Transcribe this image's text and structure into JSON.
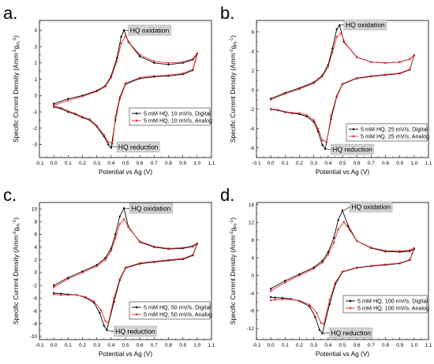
{
  "figure": {
    "colors": {
      "digital": "#000000",
      "analog": "#e8262b"
    }
  },
  "chart_data": [
    {
      "type": "line",
      "panel_label": "a.",
      "xlabel": "Potential vs Ag (V)",
      "ylabel": "Specific Current Density (Amm",
      "ylabel_sup": "-2",
      "ylabel_mid": "g",
      "ylabel_sub": "Pt",
      "ylabel_sup2": "-1",
      "ylabel_end": ")",
      "xlim": [
        -0.1,
        1.1
      ],
      "ylim": [
        -3.8,
        4.6
      ],
      "xticks": [
        -0.1,
        0.0,
        0.1,
        0.2,
        0.3,
        0.4,
        0.5,
        0.6,
        0.7,
        0.8,
        0.9,
        1.0,
        1.1
      ],
      "yticks": [
        -3,
        -2,
        -1,
        0,
        1,
        2,
        3,
        4
      ],
      "legend": [
        "5 mM HQ, 10 mV/s, Digital",
        "5 mM HQ, 10 mV/s, Analog"
      ],
      "legend_position": "center-right",
      "annotations": [
        {
          "text": "HQ oxidation",
          "x": 0.48,
          "y": 4.0,
          "box_x": 0.52,
          "box_y": 4.0
        },
        {
          "text": "HQ reduction",
          "x": 0.4,
          "y": -3.1,
          "box_x": 0.44,
          "box_y": -3.15
        }
      ],
      "series": [
        {
          "name": "5 mM HQ, 10 mV/s, Digital",
          "x": [
            0.0,
            0.1,
            0.2,
            0.3,
            0.36,
            0.4,
            0.44,
            0.47,
            0.49,
            0.52,
            0.6,
            0.7,
            0.8,
            0.9,
            0.97,
            1.0,
            0.97,
            0.9,
            0.8,
            0.7,
            0.6,
            0.5,
            0.46,
            0.43,
            0.4,
            0.38,
            0.35,
            0.3,
            0.25,
            0.2,
            0.15,
            0.1,
            0.05,
            0.0
          ],
          "y": [
            -0.5,
            -0.2,
            0.0,
            0.3,
            0.6,
            1.2,
            2.3,
            3.6,
            4.0,
            3.3,
            2.4,
            2.0,
            1.9,
            2.0,
            2.2,
            2.55,
            1.55,
            1.3,
            1.2,
            1.15,
            1.05,
            0.7,
            -0.2,
            -1.5,
            -3.2,
            -3.0,
            -2.5,
            -1.9,
            -1.5,
            -1.35,
            -1.15,
            -1.0,
            -0.8,
            -0.7
          ]
        },
        {
          "name": "5 mM HQ, 10 mV/s, Analog",
          "x": [
            0.0,
            0.1,
            0.2,
            0.3,
            0.36,
            0.4,
            0.44,
            0.47,
            0.5,
            0.53,
            0.6,
            0.7,
            0.8,
            0.9,
            0.97,
            1.0,
            0.97,
            0.9,
            0.8,
            0.7,
            0.6,
            0.5,
            0.46,
            0.43,
            0.41,
            0.38,
            0.35,
            0.3,
            0.25,
            0.2,
            0.15,
            0.1,
            0.05,
            0.0
          ],
          "y": [
            -0.6,
            -0.3,
            -0.05,
            0.25,
            0.55,
            1.1,
            2.1,
            3.2,
            3.65,
            3.2,
            2.5,
            2.1,
            2.0,
            2.05,
            2.25,
            2.6,
            1.6,
            1.35,
            1.25,
            1.2,
            1.1,
            0.75,
            -0.1,
            -1.3,
            -2.95,
            -2.85,
            -2.4,
            -1.85,
            -1.45,
            -1.3,
            -1.1,
            -0.95,
            -0.75,
            -0.65
          ]
        }
      ]
    },
    {
      "type": "line",
      "panel_label": "b.",
      "xlabel": "Potential vs Ag (V)",
      "ylabel": "Specific Current Density (Amm",
      "ylabel_sup": "-2",
      "ylabel_mid": "g",
      "ylabel_sub": "Pt",
      "ylabel_sup2": "-1",
      "ylabel_end": ")",
      "xlim": [
        -0.1,
        1.1
      ],
      "ylim": [
        -7,
        7.2
      ],
      "xticks": [
        -0.1,
        0.0,
        0.1,
        0.2,
        0.3,
        0.4,
        0.5,
        0.6,
        0.7,
        0.8,
        0.9,
        1.0,
        1.1
      ],
      "yticks": [
        -6,
        -4,
        -2,
        0,
        2,
        4,
        6
      ],
      "legend": [
        "5 mM HQ, 25 mV/s, Digital",
        "5 mM HQ, 25 mV/s, Analog"
      ],
      "legend_position": "lower-right",
      "annotations": [
        {
          "text": "HQ oxidation",
          "x": 0.47,
          "y": 6.7,
          "box_x": 0.51,
          "box_y": 6.75
        },
        {
          "text": "HQ reduction",
          "x": 0.38,
          "y": -6.1,
          "box_x": 0.42,
          "box_y": -6.15
        }
      ],
      "series": [
        {
          "name": "5 mM HQ, 25 mV/s, Digital",
          "x": [
            0.0,
            0.1,
            0.2,
            0.3,
            0.36,
            0.4,
            0.43,
            0.46,
            0.48,
            0.51,
            0.6,
            0.7,
            0.8,
            0.9,
            0.97,
            1.0,
            0.97,
            0.9,
            0.8,
            0.7,
            0.6,
            0.5,
            0.46,
            0.42,
            0.38,
            0.36,
            0.33,
            0.3,
            0.25,
            0.2,
            0.15,
            0.1,
            0.05,
            0.0
          ],
          "y": [
            -0.9,
            -0.3,
            0.2,
            0.8,
            1.5,
            2.6,
            4.3,
            6.3,
            6.7,
            5.0,
            3.4,
            2.9,
            2.8,
            2.9,
            3.2,
            3.6,
            2.1,
            1.7,
            1.55,
            1.4,
            1.2,
            0.6,
            -0.7,
            -3.0,
            -6.1,
            -5.7,
            -4.3,
            -3.3,
            -2.75,
            -2.5,
            -2.4,
            -2.3,
            -2.1,
            -2.0
          ]
        },
        {
          "name": "5 mM HQ, 25 mV/s, Analog",
          "x": [
            0.0,
            0.1,
            0.2,
            0.3,
            0.36,
            0.4,
            0.43,
            0.46,
            0.49,
            0.52,
            0.6,
            0.7,
            0.8,
            0.9,
            0.97,
            1.0,
            0.97,
            0.9,
            0.8,
            0.7,
            0.6,
            0.5,
            0.46,
            0.42,
            0.39,
            0.36,
            0.33,
            0.3,
            0.25,
            0.2,
            0.15,
            0.1,
            0.05,
            0.0
          ],
          "y": [
            -1.0,
            -0.4,
            0.1,
            0.7,
            1.4,
            2.4,
            3.9,
            5.5,
            5.9,
            4.8,
            3.4,
            2.9,
            2.8,
            2.9,
            3.2,
            3.6,
            2.15,
            1.75,
            1.6,
            1.45,
            1.25,
            0.65,
            -0.6,
            -2.7,
            -5.4,
            -5.2,
            -4.0,
            -3.1,
            -2.6,
            -2.4,
            -2.35,
            -2.25,
            -2.05,
            -1.95
          ]
        }
      ]
    },
    {
      "type": "line",
      "panel_label": "c.",
      "xlabel": "Potential vs Ag (V)",
      "ylabel": "Specific Current Density (Amm",
      "ylabel_sup": "-2",
      "ylabel_mid": "g",
      "ylabel_sub": "Pt",
      "ylabel_sup2": "-1",
      "ylabel_end": ")",
      "xlim": [
        -0.1,
        1.1
      ],
      "ylim": [
        -10.5,
        11
      ],
      "xticks": [
        -0.1,
        0.0,
        0.1,
        0.2,
        0.3,
        0.4,
        0.5,
        0.6,
        0.7,
        0.8,
        0.9,
        1.0,
        1.1
      ],
      "yticks": [
        -10,
        -8,
        -6,
        -4,
        -2,
        0,
        2,
        4,
        6,
        8,
        10
      ],
      "legend": [
        "5 mM HQ, 50 mV/s, Digital",
        "5 mM HQ, 50 mV/s, Analog"
      ],
      "legend_position": "lower-right",
      "annotations": [
        {
          "text": "HQ oxidation",
          "x": 0.49,
          "y": 10.1,
          "box_x": 0.53,
          "box_y": 10.1
        },
        {
          "text": "HQ reduction",
          "x": 0.37,
          "y": -9.1,
          "box_x": 0.42,
          "box_y": -9.2
        }
      ],
      "series": [
        {
          "name": "5 mM HQ, 50 mV/s, Digital",
          "x": [
            0.0,
            0.1,
            0.2,
            0.3,
            0.36,
            0.4,
            0.43,
            0.46,
            0.49,
            0.52,
            0.6,
            0.7,
            0.8,
            0.9,
            0.97,
            1.0,
            0.97,
            0.9,
            0.8,
            0.7,
            0.6,
            0.5,
            0.46,
            0.42,
            0.37,
            0.35,
            0.32,
            0.28,
            0.22,
            0.16,
            0.1,
            0.05,
            0.0
          ],
          "y": [
            -2.0,
            -0.8,
            0.2,
            1.2,
            2.3,
            3.8,
            6.0,
            8.8,
            10.1,
            7.2,
            4.8,
            4.0,
            3.7,
            3.8,
            4.1,
            4.5,
            2.7,
            2.1,
            1.9,
            1.65,
            1.4,
            0.7,
            -1.2,
            -4.6,
            -9.0,
            -8.3,
            -6.3,
            -4.7,
            -3.9,
            -3.5,
            -3.4,
            -3.3,
            -3.2
          ]
        },
        {
          "name": "5 mM HQ, 50 mV/s, Analog",
          "x": [
            0.0,
            0.1,
            0.2,
            0.3,
            0.36,
            0.4,
            0.43,
            0.46,
            0.49,
            0.53,
            0.6,
            0.7,
            0.8,
            0.9,
            0.97,
            1.0,
            0.97,
            0.9,
            0.8,
            0.7,
            0.6,
            0.5,
            0.46,
            0.42,
            0.38,
            0.36,
            0.33,
            0.28,
            0.22,
            0.16,
            0.1,
            0.05,
            0.0
          ],
          "y": [
            -2.3,
            -1.0,
            0.0,
            1.0,
            2.0,
            3.4,
            5.4,
            7.6,
            8.4,
            6.8,
            4.9,
            4.1,
            3.8,
            3.9,
            4.2,
            4.6,
            2.8,
            2.2,
            2.0,
            1.75,
            1.5,
            0.8,
            -1.0,
            -4.0,
            -7.9,
            -7.6,
            -5.9,
            -4.5,
            -3.8,
            -3.5,
            -3.5,
            -3.5,
            -3.4
          ]
        }
      ]
    },
    {
      "type": "line",
      "panel_label": "d.",
      "xlabel": "Potential vs Ag (V)",
      "ylabel": "Specific Current Density (Amm",
      "ylabel_sup": "-2",
      "ylabel_mid": "g",
      "ylabel_sub": "Pt",
      "ylabel_sup2": "-1",
      "ylabel_end": ")",
      "xlim": [
        -0.1,
        1.1
      ],
      "ylim": [
        -14.5,
        16.5
      ],
      "xticks": [
        -0.1,
        0.0,
        0.1,
        0.2,
        0.3,
        0.4,
        0.5,
        0.6,
        0.7,
        0.8,
        0.9,
        1.0,
        1.1
      ],
      "yticks": [
        -12,
        -8,
        -4,
        0,
        4,
        8,
        12,
        16
      ],
      "legend": [
        "5 mM HQ, 100 mV/s, Digital",
        "5 mM HQ, 100 mV/s, Analog"
      ],
      "legend_position": "lower-right",
      "annotations": [
        {
          "text": "HQ oxidation",
          "x": 0.51,
          "y": 14.7,
          "box_x": 0.55,
          "box_y": 15.5
        },
        {
          "text": "HQ reduction",
          "x": 0.36,
          "y": -13.1,
          "box_x": 0.41,
          "box_y": -13.0
        }
      ],
      "series": [
        {
          "name": "5 mM HQ, 100 mV/s, Digital",
          "x": [
            0.0,
            0.1,
            0.2,
            0.3,
            0.36,
            0.4,
            0.44,
            0.47,
            0.5,
            0.54,
            0.6,
            0.7,
            0.8,
            0.9,
            0.97,
            1.0,
            0.97,
            0.9,
            0.8,
            0.7,
            0.6,
            0.5,
            0.45,
            0.41,
            0.36,
            0.34,
            0.31,
            0.27,
            0.2,
            0.14,
            0.08,
            0.03,
            0.0
          ],
          "y": [
            -3.0,
            -1.2,
            0.3,
            1.8,
            3.3,
            5.3,
            8.5,
            12.5,
            14.7,
            11.2,
            7.8,
            6.2,
            5.4,
            5.3,
            5.5,
            6.0,
            3.5,
            2.7,
            2.4,
            2.1,
            1.7,
            0.8,
            -2.0,
            -6.5,
            -13.1,
            -12.3,
            -9.4,
            -7.0,
            -5.8,
            -5.3,
            -5.1,
            -5.0,
            -4.9
          ]
        },
        {
          "name": "5 mM HQ, 100 mV/s, Analog",
          "x": [
            0.0,
            0.1,
            0.2,
            0.3,
            0.36,
            0.4,
            0.44,
            0.47,
            0.51,
            0.55,
            0.6,
            0.7,
            0.8,
            0.9,
            0.97,
            1.0,
            0.97,
            0.9,
            0.8,
            0.7,
            0.6,
            0.5,
            0.45,
            0.41,
            0.37,
            0.35,
            0.32,
            0.27,
            0.2,
            0.14,
            0.08,
            0.03,
            0.0
          ],
          "y": [
            -3.5,
            -1.6,
            0.0,
            1.5,
            2.9,
            4.7,
            7.4,
            10.4,
            12.1,
            10.3,
            7.8,
            6.3,
            5.6,
            5.5,
            5.7,
            6.2,
            3.6,
            2.8,
            2.5,
            2.2,
            1.8,
            0.9,
            -1.6,
            -5.6,
            -11.0,
            -10.7,
            -8.5,
            -6.6,
            -5.7,
            -5.4,
            -5.4,
            -5.5,
            -5.6
          ]
        }
      ]
    }
  ]
}
